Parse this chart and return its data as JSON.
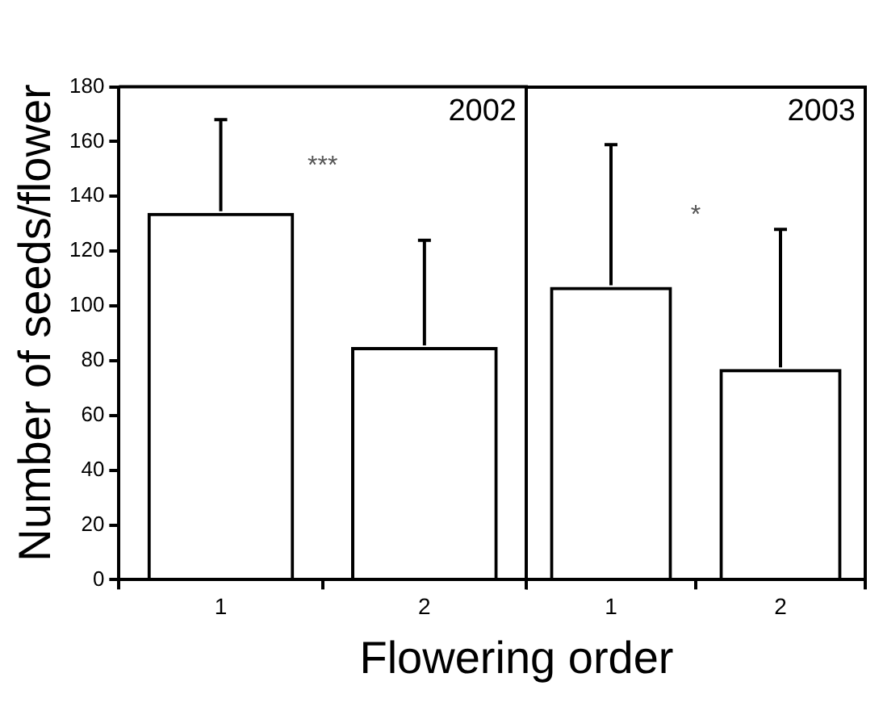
{
  "chart_data": [
    {
      "type": "bar",
      "ylabel": "Number of seeds/flower",
      "xlabel": "Flowering order",
      "categories": [
        "1",
        "2"
      ],
      "values": [
        134,
        85
      ],
      "errors": [
        [
          134,
          168
        ],
        [
          85,
          124
        ]
      ],
      "color": "#000000",
      "ylim": [
        0,
        180
      ],
      "yticks": [
        0,
        20,
        40,
        60,
        80,
        100,
        120,
        140,
        160,
        180
      ],
      "annotations": [
        "2002",
        "***"
      ]
    },
    {
      "type": "bar",
      "categories": [
        "1",
        "2"
      ],
      "values": [
        107,
        77
      ],
      "errors": [
        [
          107,
          159
        ],
        [
          77,
          128
        ]
      ],
      "color": "#000000",
      "ylim": [
        0,
        180
      ],
      "yticks": [
        0,
        20,
        40,
        60,
        80,
        100,
        120,
        140,
        160,
        180
      ],
      "tick_labels": "x",
      "annotations": [
        "2003",
        "*"
      ]
    }
  ]
}
